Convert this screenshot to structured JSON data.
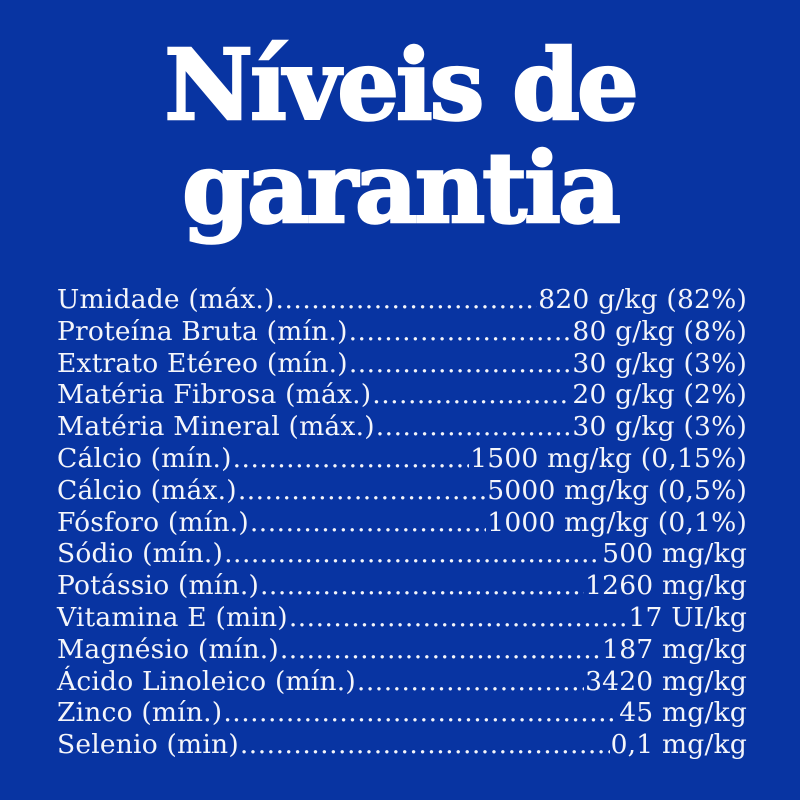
{
  "colors": {
    "background": "#0834a2",
    "title_text": "#ffffff",
    "row_text": "#f4f5fa"
  },
  "title": {
    "line1": "Níveis de",
    "line2": "garantia"
  },
  "table": {
    "rows": [
      {
        "label": "Umidade (máx.)",
        "value": "820 g/kg (82%)"
      },
      {
        "label": "Proteína Bruta (mín.)",
        "value": "80 g/kg (8%)"
      },
      {
        "label": "Extrato Etéreo (mín.)",
        "value": "30 g/kg (3%)"
      },
      {
        "label": "Matéria Fibrosa (máx.)",
        "value": "20 g/kg (2%)"
      },
      {
        "label": "Matéria Mineral (máx.)",
        "value": "30 g/kg (3%)"
      },
      {
        "label": "Cálcio (mín.)",
        "value": "1500 mg/kg (0,15%)"
      },
      {
        "label": "Cálcio (máx.)",
        "value": "5000 mg/kg (0,5%)"
      },
      {
        "label": "Fósforo (mín.)",
        "value": "1000 mg/kg (0,1%)"
      },
      {
        "label": "Sódio (mín.)",
        "value": "500 mg/kg"
      },
      {
        "label": "Potássio (mín.)",
        "value": "1260 mg/kg"
      },
      {
        "label": "Vitamina E (min)",
        "value": "17 UI/kg"
      },
      {
        "label": "Magnésio (mín.)",
        "value": "187 mg/kg"
      },
      {
        "label": "Ácido Linoleico (mín.)",
        "value": "3420 mg/kg"
      },
      {
        "label": "Zinco (mín.)",
        "value": "45 mg/kg"
      },
      {
        "label": "Selenio (min)",
        "value": "0,1 mg/kg"
      }
    ]
  }
}
